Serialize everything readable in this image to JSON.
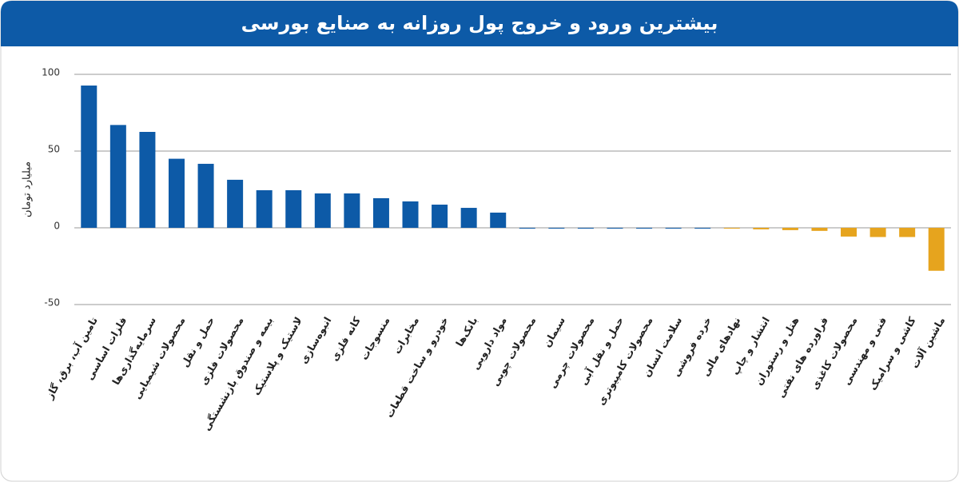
{
  "chart_data": {
    "type": "bar",
    "title": "بیشترین ورود و خروج پول روزانه به صنایع بورسی",
    "y_label": "میلیارد تومان",
    "categories": [
      "تامین آب، برق، گاز",
      "فلزات اساسی",
      "سرمایه‌گذاری‌ها",
      "محصولات شیمیایی",
      "حمل و نقل",
      "محصولات فلزی",
      "بیمه و صندوق بازنشستگی",
      "لاستیک و پلاستیک",
      "انبوه‌سازی",
      "کانه فلزی",
      "منسوجات",
      "مخابرات",
      "خودرو و ساخت قطعات",
      "بانک‌ها",
      "مواد دارویی",
      "محصولات چوبی",
      "سیمان",
      "محصولات چرمی",
      "حمل و نقل آبی",
      "محصولات کامپیوتری",
      "سلامت انسان",
      "خرده فروشی",
      "نهادهای مالی",
      "انتشار و چاپ",
      "هتل و رستوران",
      "فراورده های نفتی",
      "محصولات کاغذی",
      "فنی و مهندسی",
      "کاشی و سرامیک",
      "ماشین آلات"
    ],
    "values": [
      92.7,
      67,
      62.5,
      45,
      41.7,
      31.3,
      24.5,
      24.5,
      22.4,
      22.4,
      19.3,
      17.2,
      15.1,
      13,
      9.9,
      0,
      0,
      0,
      0,
      0,
      0,
      0,
      -0.5,
      -1,
      -1.5,
      -2,
      -5.7,
      -6,
      -6,
      -28
    ],
    "positive_color": "#0d5aa7",
    "negative_color": "#e6a41e",
    "ylim": [
      -50,
      100
    ],
    "yticks": [
      -50,
      0,
      50,
      100
    ],
    "grid": true
  }
}
